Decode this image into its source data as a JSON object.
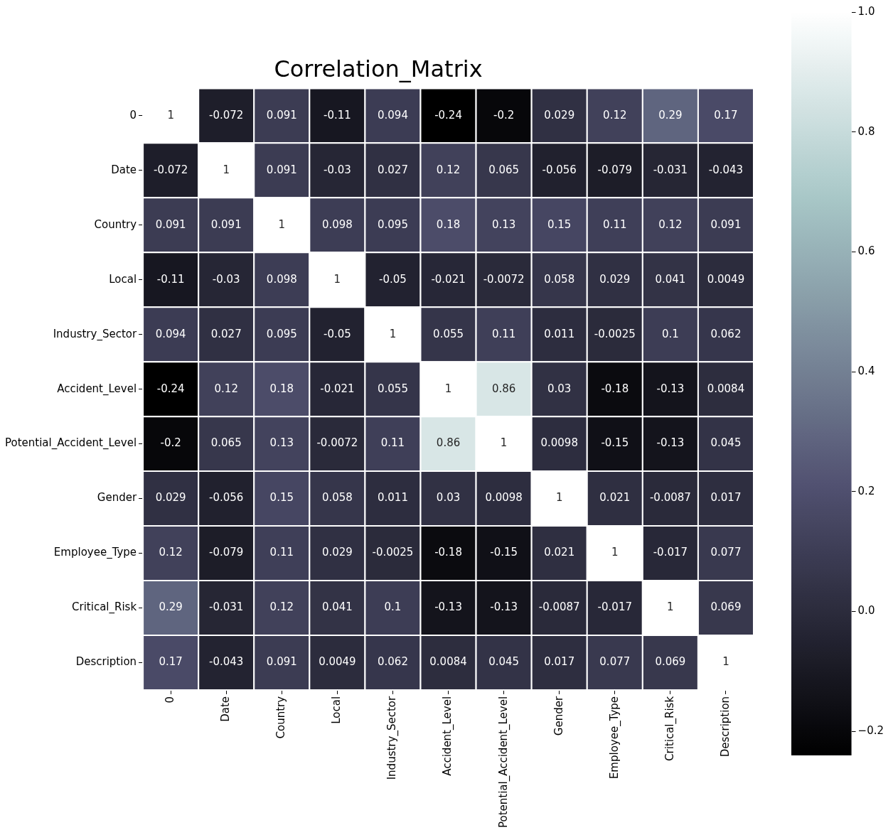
{
  "chart_data": {
    "type": "heatmap",
    "title": "Correlation_Matrix",
    "categories": [
      "0",
      "Date",
      "Country",
      "Local",
      "Industry_Sector",
      "Accident_Level",
      "Potential_Accident_Level",
      "Gender",
      "Employee_Type",
      "Critical_Risk",
      "Description"
    ],
    "y_categories": [
      "0",
      "Date",
      "Country",
      "Local",
      "Industry_Sector",
      "Accident_Level",
      "Potential_Accident_Level",
      "Gender",
      "Employee_Type",
      "Critical_Risk",
      "Description"
    ],
    "cells": [
      [
        1,
        -0.072,
        0.091,
        -0.11,
        0.094,
        -0.24,
        -0.2,
        0.029,
        0.12,
        0.29,
        0.17
      ],
      [
        -0.072,
        1,
        0.091,
        -0.03,
        0.027,
        0.12,
        0.065,
        -0.056,
        -0.079,
        -0.031,
        -0.043
      ],
      [
        0.091,
        0.091,
        1,
        0.098,
        0.095,
        0.18,
        0.13,
        0.15,
        0.11,
        0.12,
        0.091
      ],
      [
        -0.11,
        -0.03,
        0.098,
        1,
        -0.05,
        -0.021,
        -0.0072,
        0.058,
        0.029,
        0.041,
        0.0049
      ],
      [
        0.094,
        0.027,
        0.095,
        -0.05,
        1,
        0.055,
        0.11,
        0.011,
        -0.0025,
        0.1,
        0.062
      ],
      [
        -0.24,
        0.12,
        0.18,
        -0.021,
        0.055,
        1,
        0.86,
        0.03,
        -0.18,
        -0.13,
        0.0084
      ],
      [
        -0.2,
        0.065,
        0.13,
        -0.0072,
        0.11,
        0.86,
        1,
        0.0098,
        -0.15,
        -0.13,
        0.045
      ],
      [
        0.029,
        -0.056,
        0.15,
        0.058,
        0.011,
        0.03,
        0.0098,
        1,
        0.021,
        -0.0087,
        0.017
      ],
      [
        0.12,
        -0.079,
        0.11,
        0.029,
        -0.0025,
        -0.18,
        -0.15,
        0.021,
        1,
        -0.017,
        0.077
      ],
      [
        0.29,
        -0.031,
        0.12,
        0.041,
        0.1,
        -0.13,
        -0.13,
        -0.0087,
        -0.017,
        1,
        0.069
      ],
      [
        0.17,
        -0.043,
        0.091,
        0.0049,
        0.062,
        0.0084,
        0.045,
        0.017,
        0.077,
        0.069,
        1
      ]
    ],
    "clim": [
      -0.24,
      1
    ],
    "cticks": [
      {
        "value": -0.2,
        "label": "−0.2"
      },
      {
        "value": 0,
        "label": "0.0"
      },
      0.2,
      0.4,
      0.6,
      0.8,
      {
        "value": 1,
        "label": "1.0"
      }
    ],
    "data_labels": true
  }
}
